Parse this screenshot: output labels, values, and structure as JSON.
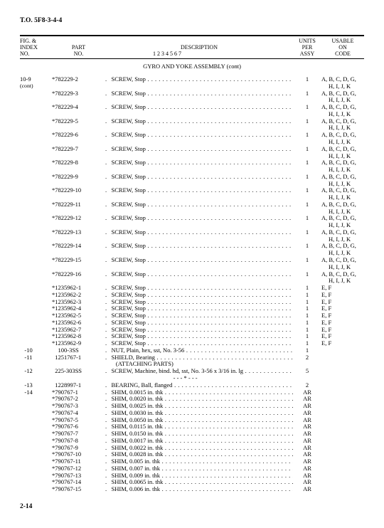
{
  "doc_id": "T.O. 5F8-3-4-4",
  "page_num": "2-14",
  "header": {
    "fig1": "FIG. &",
    "fig2": "INDEX",
    "fig3": "NO.",
    "part1": "PART",
    "part2": "NO.",
    "desc1": "DESCRIPTION",
    "desc2": "1  2  3  4  5  6  7",
    "units1": "UNITS",
    "units2": "PER",
    "units3": "ASSY",
    "code1": "USABLE",
    "code2": "ON",
    "code3": "CODE"
  },
  "section_title": "GYRO AND YOKE ASSEMBLY (cont)",
  "rows": [
    {
      "fig": "10-9",
      "figsub": "(cont)",
      "part": "*782229-2",
      "desc": ".   SCREW, Stop",
      "dots": true,
      "units": "1",
      "code1": "A, B, C, D, G,",
      "code2": "H, I, J, K"
    },
    {
      "fig": "",
      "part": "*782229-3",
      "desc": ".   SCREW, Stop",
      "dots": true,
      "units": "1",
      "code1": "A, B, C, D, G,",
      "code2": "H, I, J, K"
    },
    {
      "fig": "",
      "part": "*782229-4",
      "desc": ".   SCREW, Stop",
      "dots": true,
      "units": "1",
      "code1": "A, B, C, D, G,",
      "code2": "H, I, J, K"
    },
    {
      "fig": "",
      "part": "*782229-5",
      "desc": ".   SCREW, Stop",
      "dots": true,
      "units": "1",
      "code1": "A, B, C, D, G,",
      "code2": "H, I, J, K"
    },
    {
      "fig": "",
      "part": "*782229-6",
      "desc": ".   SCREW, Stop",
      "dots": true,
      "units": "1",
      "code1": "A, B, C, D, G,",
      "code2": "H, I, J, K"
    },
    {
      "fig": "",
      "part": "*782229-7",
      "desc": ".   SCREW, Stop",
      "dots": true,
      "units": "1",
      "code1": "A, B, C, D, G,",
      "code2": "H, I, J, K"
    },
    {
      "fig": "",
      "part": "*782229-8",
      "desc": ".   SCREW, Stop",
      "dots": true,
      "units": "1",
      "code1": "A, B, C, D, G,",
      "code2": "H, I, J, K"
    },
    {
      "fig": "",
      "part": "*782229-9",
      "desc": ".   SCREW, Stop",
      "dots": true,
      "units": "1",
      "code1": "A, B, C, D, G,",
      "code2": "H, I, J, K"
    },
    {
      "fig": "",
      "part": "*782229-10",
      "desc": ".   SCREW, Stop",
      "dots": true,
      "units": "1",
      "code1": "A, B, C, D, G,",
      "code2": "H, I, J, K"
    },
    {
      "fig": "",
      "part": "*782229-11",
      "desc": ".   SCREW, Stop",
      "dots": true,
      "units": "1",
      "code1": "A, B, C, D, G,",
      "code2": "H, I, J, K"
    },
    {
      "fig": "",
      "part": "*782229-12",
      "desc": ".   SCREW, Stop",
      "dots": true,
      "units": "1",
      "code1": "A, B, C, D, G,",
      "code2": "H, I, J, K"
    },
    {
      "fig": "",
      "part": "*782229-13",
      "desc": ".   SCREW, Stop",
      "dots": true,
      "units": "1",
      "code1": "A, B, C, D, G,",
      "code2": "H, I, J, K"
    },
    {
      "fig": "",
      "part": "*782229-14",
      "desc": ".   SCREW, Stop",
      "dots": true,
      "units": "1",
      "code1": "A, B, C, D, G,",
      "code2": "H, I, J, K"
    },
    {
      "fig": "",
      "part": "*782229-15",
      "desc": ".   SCREW, Stop",
      "dots": true,
      "units": "1",
      "code1": "A, B, C, D, G,",
      "code2": "H, I, J, K"
    },
    {
      "fig": "",
      "part": "*782229-16",
      "desc": ".   SCREW, Stop",
      "dots": true,
      "units": "1",
      "code1": "A, B, C, D, G,",
      "code2": "H, I, J, K"
    },
    {
      "fig": "",
      "part": "*1235962-1",
      "desc": ".   SCREW, Stop",
      "dots": true,
      "units": "1",
      "code1": "E, F"
    },
    {
      "fig": "",
      "part": "*1235962-2",
      "desc": ".   SCREW, Stop",
      "dots": true,
      "units": "1",
      "code1": "E, F"
    },
    {
      "fig": "",
      "part": "*1235962-3",
      "desc": ".   SCREW, Stop",
      "dots": true,
      "units": "1",
      "code1": "E, F"
    },
    {
      "fig": "",
      "part": "*1235962-4",
      "desc": ".   SCREW, Stop",
      "dots": true,
      "units": "1",
      "code1": "E, F"
    },
    {
      "fig": "",
      "part": "*1235962-5",
      "desc": ".   SCREW, Stop",
      "dots": true,
      "units": "1",
      "code1": "E, F"
    },
    {
      "fig": "",
      "part": "*1235962-6",
      "desc": ".   SCREW, Stop",
      "dots": true,
      "units": "1",
      "code1": "E, F"
    },
    {
      "fig": "",
      "part": "*1235962-7",
      "desc": ".   SCREW, Stop",
      "dots": true,
      "units": "1",
      "code1": "E, F"
    },
    {
      "fig": "",
      "part": "*1235962-8",
      "desc": ".   SCREW, Stop",
      "dots": true,
      "units": "1",
      "code1": "E, F"
    },
    {
      "fig": "",
      "part": "*1235962-9",
      "desc": ".   SCREW, Stop",
      "dots": true,
      "units": "1",
      "code1": "E, F"
    },
    {
      "fig": "   -10",
      "part": "    100-3SS",
      "desc": ".   NUT, Plain, hex, sst, No. 3-56",
      "dots": true,
      "units": "1",
      "code1": ""
    },
    {
      "fig": "   -11",
      "part": "  1251767-1",
      "desc": ".   SHIELD, Bearing",
      "dots": true,
      "units": "2",
      "code1": ""
    },
    {
      "fig": "",
      "part": "",
      "desc": "       (ATTACHING PARTS)",
      "dots": false,
      "units": "",
      "code1": ""
    },
    {
      "fig": "   -12",
      "part": "  225-303SS",
      "desc": ".   SCREW, Machine, bind. hd, sst, No. 3-56 x 3/16 in. lg",
      "dots": true,
      "units": "5",
      "code1": ""
    },
    {
      "fig": "",
      "part": "",
      "desc": "                                             - - - * - - -",
      "dots": false,
      "units": "",
      "code1": ""
    },
    {
      "fig": "   -13",
      "part": "  1228997-1",
      "desc": ".   BEARING, Ball, flanged",
      "dots": true,
      "units": "2",
      "code1": ""
    },
    {
      "fig": "   -14",
      "part": "*790767-1",
      "desc": ".   SHIM, 0.0015 in. thk",
      "dots": true,
      "units": "AR",
      "code1": ""
    },
    {
      "fig": "",
      "part": "*790767-2",
      "desc": ".   SHIM, 0.0020 in. thk",
      "dots": true,
      "units": "AR",
      "code1": ""
    },
    {
      "fig": "",
      "part": "*790767-3",
      "desc": ".   SHIM, 0.0025 in. thk",
      "dots": true,
      "units": "AR",
      "code1": ""
    },
    {
      "fig": "",
      "part": "*790767-4",
      "desc": ".   SHIM, 0.0030 in. thk",
      "dots": true,
      "units": "AR",
      "code1": ""
    },
    {
      "fig": "",
      "part": "*790767-5",
      "desc": ".   SHIM, 0.0050 in. thk",
      "dots": true,
      "units": "AR",
      "code1": ""
    },
    {
      "fig": "",
      "part": "*790767-6",
      "desc": ".   SHIM, 0.0115 in. thk",
      "dots": true,
      "units": "AR",
      "code1": ""
    },
    {
      "fig": "",
      "part": "*790767-7",
      "desc": ".   SHIM, 0.0150 in. thk",
      "dots": true,
      "units": "AR",
      "code1": ""
    },
    {
      "fig": "",
      "part": "*790767-8",
      "desc": ".   SHIM, 0.0017 in. thk",
      "dots": true,
      "units": "AR",
      "code1": ""
    },
    {
      "fig": "",
      "part": "*790767-9",
      "desc": ".   SHIM, 0.0022 in. thk",
      "dots": true,
      "units": "AR",
      "code1": ""
    },
    {
      "fig": "",
      "part": "*790767-10",
      "desc": ".   SHIM, 0.0028 in. thk",
      "dots": true,
      "units": "AR",
      "code1": ""
    },
    {
      "fig": "",
      "part": "*790767-11",
      "desc": ".   SHIM, 0.005 in. thk",
      "dots": true,
      "units": "AR",
      "code1": ""
    },
    {
      "fig": "",
      "part": "*790767-12",
      "desc": ".   SHIM, 0.007 in. thk",
      "dots": true,
      "units": "AR",
      "code1": ""
    },
    {
      "fig": "",
      "part": "*790767-13",
      "desc": ".   SHIM, 0.009 in. thk",
      "dots": true,
      "units": "AR",
      "code1": ""
    },
    {
      "fig": "",
      "part": "*790767-14",
      "desc": ".   SHIM, 0.0065 in. thk",
      "dots": true,
      "units": "AR",
      "code1": ""
    },
    {
      "fig": "",
      "part": "*790767-15",
      "desc": ".   SHIM, 0.006 in. thk",
      "dots": true,
      "units": "AR",
      "code1": ""
    }
  ]
}
